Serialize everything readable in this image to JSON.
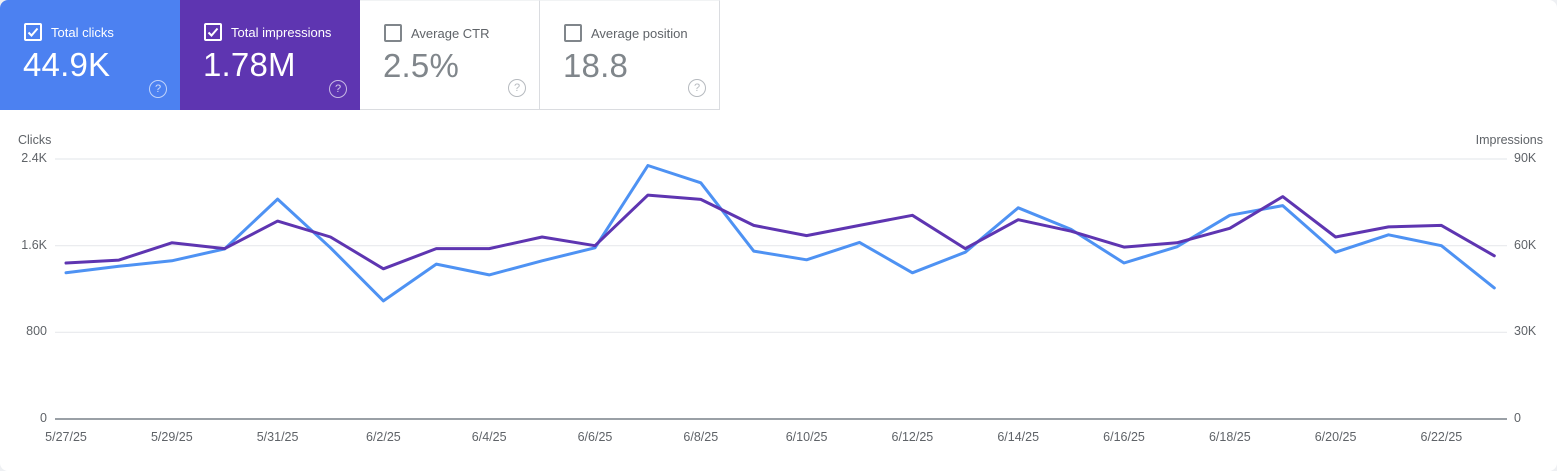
{
  "colors": {
    "clicks_card_bg": "#4c81f1",
    "impressions_card_bg": "#5e35b1",
    "clicks_line": "#4e92f3",
    "impressions_line": "#5e35b1",
    "label_gray": "#5f6368",
    "value_gray": "#80868b",
    "card_border": "#dadce0",
    "gridline": "#e8eaed",
    "axis_baseline": "#9aa0a6"
  },
  "cards": [
    {
      "label": "Total clicks",
      "value": "44.9K",
      "checked": true,
      "bg": "#4c81f1",
      "help_icon": "circled-question-mark"
    },
    {
      "label": "Total impressions",
      "value": "1.78M",
      "checked": true,
      "bg": "#5e35b1",
      "help_icon": "circled-question-mark"
    },
    {
      "label": "Average CTR",
      "value": "2.5%",
      "checked": false,
      "bg": "",
      "help_icon": "circled-question-mark"
    },
    {
      "label": "Average position",
      "value": "18.8",
      "checked": false,
      "bg": "",
      "help_icon": "circled-question-mark"
    }
  ],
  "chart_data": {
    "type": "line",
    "x": [
      "5/27/25",
      "5/28/25",
      "5/29/25",
      "5/30/25",
      "5/31/25",
      "6/1/25",
      "6/2/25",
      "6/3/25",
      "6/4/25",
      "6/5/25",
      "6/6/25",
      "6/7/25",
      "6/8/25",
      "6/9/25",
      "6/10/25",
      "6/11/25",
      "6/12/25",
      "6/13/25",
      "6/14/25",
      "6/15/25",
      "6/16/25",
      "6/17/25",
      "6/18/25",
      "6/19/25",
      "6/20/25",
      "6/21/25",
      "6/22/25",
      "6/23/25"
    ],
    "x_tick_labels": [
      "5/27/25",
      "5/29/25",
      "5/31/25",
      "6/2/25",
      "6/4/25",
      "6/6/25",
      "6/8/25",
      "6/10/25",
      "6/12/25",
      "6/14/25",
      "6/16/25",
      "6/18/25",
      "6/20/25",
      "6/22/25"
    ],
    "series": [
      {
        "name": "Clicks",
        "axis": "left",
        "color": "#4e92f3",
        "values": [
          1350,
          1410,
          1460,
          1570,
          2030,
          1580,
          1090,
          1430,
          1330,
          1460,
          1580,
          2340,
          2180,
          1550,
          1470,
          1630,
          1350,
          1540,
          1950,
          1750,
          1440,
          1590,
          1880,
          1970,
          1540,
          1700,
          1600,
          1210
        ]
      },
      {
        "name": "Impressions",
        "axis": "right",
        "color": "#5e35b1",
        "values": [
          54000,
          55000,
          61000,
          59000,
          68500,
          63000,
          52000,
          59000,
          59000,
          63000,
          60000,
          77500,
          76000,
          67000,
          63500,
          67000,
          70500,
          59000,
          69000,
          65000,
          59500,
          61000,
          66000,
          77000,
          63000,
          66500,
          67000,
          56500
        ]
      }
    ],
    "left_axis": {
      "title": "Clicks",
      "max": 2400,
      "ticks": [
        {
          "label": "2.4K",
          "value": 2400
        },
        {
          "label": "1.6K",
          "value": 1600
        },
        {
          "label": "800",
          "value": 800
        },
        {
          "label": "0",
          "value": 0
        }
      ]
    },
    "right_axis": {
      "title": "Impressions",
      "max": 90000,
      "ticks": [
        {
          "label": "90K",
          "value": 90000
        },
        {
          "label": "60K",
          "value": 60000
        },
        {
          "label": "30K",
          "value": 30000
        },
        {
          "label": "0",
          "value": 0
        }
      ]
    },
    "grid": "horizontal-only",
    "legend": "none"
  }
}
